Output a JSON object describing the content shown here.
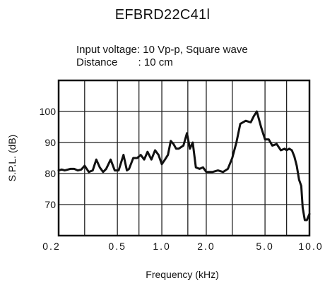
{
  "chart_data": {
    "type": "line",
    "title": "EFBRD22C41l",
    "conditions": [
      "Input voltage: 10 Vp-p, Square wave",
      "Distance       : 10 cm"
    ],
    "xlabel": "Frequency (kHz)",
    "ylabel": "S.P.L. (dB)",
    "xscale": "log",
    "xlim": [
      0.2,
      10.0
    ],
    "ylim": [
      60,
      110
    ],
    "x_tick_labels": [
      "0.2",
      "0.5",
      "1.0",
      "2.0",
      "5.0",
      "10.0"
    ],
    "x_tick_values": [
      0.2,
      0.5,
      1.0,
      2.0,
      5.0,
      10.0
    ],
    "y_tick_labels": [
      "70",
      "80",
      "90",
      "100"
    ],
    "y_tick_values": [
      70,
      80,
      90,
      100
    ],
    "x_gridlines": [
      0.2,
      0.3,
      0.5,
      0.7,
      1.0,
      1.5,
      2.0,
      3.0,
      5.0,
      7.0,
      10.0
    ],
    "grid": true,
    "series": [
      {
        "color": "#111111",
        "x": [
          0.2,
          0.21,
          0.22,
          0.24,
          0.255,
          0.27,
          0.285,
          0.3,
          0.32,
          0.34,
          0.36,
          0.38,
          0.4,
          0.42,
          0.45,
          0.48,
          0.51,
          0.55,
          0.58,
          0.6,
          0.64,
          0.68,
          0.72,
          0.76,
          0.8,
          0.85,
          0.9,
          0.95,
          1.0,
          1.05,
          1.1,
          1.15,
          1.2,
          1.25,
          1.3,
          1.4,
          1.48,
          1.55,
          1.62,
          1.7,
          1.8,
          1.9,
          2.0,
          2.2,
          2.4,
          2.6,
          2.8,
          3.0,
          3.2,
          3.4,
          3.7,
          4.0,
          4.2,
          4.4,
          4.7,
          5.0,
          5.3,
          5.6,
          6.0,
          6.4,
          6.8,
          7.0,
          7.3,
          7.6,
          7.9,
          8.2,
          8.5,
          8.8,
          9.0,
          9.3,
          9.6,
          10.0
        ],
        "y": [
          81,
          81.3,
          81,
          81.5,
          81.5,
          81,
          81.3,
          82.5,
          80.5,
          81,
          84.5,
          82,
          80.5,
          81.5,
          84.5,
          81,
          81,
          86,
          81,
          81.5,
          85,
          85,
          86,
          84.5,
          87,
          84.5,
          87.5,
          86,
          83,
          84.5,
          86,
          90.5,
          89.5,
          88,
          88,
          89,
          93,
          88,
          90,
          82,
          81.5,
          82,
          80.5,
          80.5,
          81,
          80.5,
          81.5,
          85,
          90,
          96,
          97,
          96.5,
          98.5,
          100,
          95,
          91,
          91,
          89,
          89.5,
          87.5,
          88,
          87.5,
          88,
          87.5,
          85.5,
          82.5,
          78,
          76,
          69,
          65,
          65,
          67
        ]
      }
    ]
  }
}
